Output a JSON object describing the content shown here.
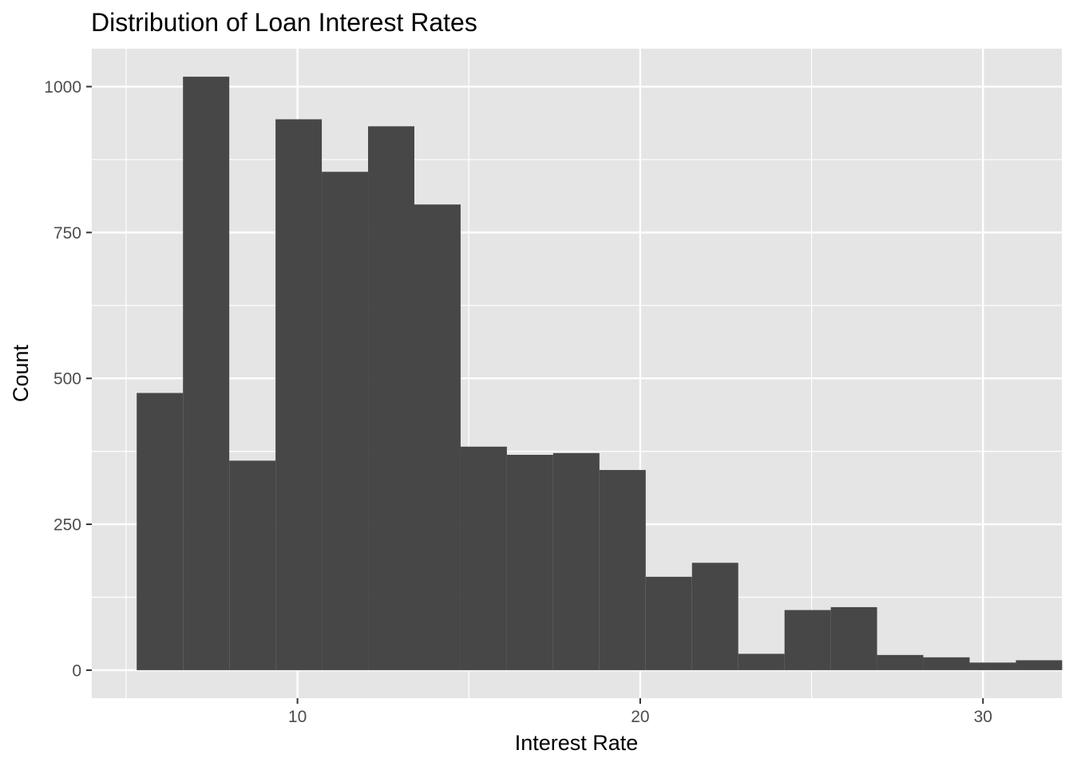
{
  "chart_data": {
    "type": "bar",
    "title": "Distribution of Loan Interest Rates",
    "xlabel": "Interest Rate",
    "ylabel": "Count",
    "xlim": [
      4.0,
      32.3
    ],
    "ylim": [
      -48,
      1065
    ],
    "x_ticks": [
      10,
      20,
      30
    ],
    "y_ticks": [
      0,
      250,
      500,
      750,
      1000
    ],
    "x_minor_ticks": [
      5,
      15,
      25
    ],
    "y_minor_ticks": [
      125,
      375,
      625,
      875
    ],
    "grid": true,
    "panel_background": "#e5e5e5",
    "grid_color": "#ffffff",
    "bar_color": "#474747",
    "bins": [
      {
        "x0": 5.31,
        "x1": 6.66,
        "count": 475
      },
      {
        "x0": 6.66,
        "x1": 8.01,
        "count": 1017
      },
      {
        "x0": 8.01,
        "x1": 9.36,
        "count": 359
      },
      {
        "x0": 9.36,
        "x1": 10.71,
        "count": 944
      },
      {
        "x0": 10.71,
        "x1": 12.06,
        "count": 854
      },
      {
        "x0": 12.06,
        "x1": 13.41,
        "count": 932
      },
      {
        "x0": 13.41,
        "x1": 14.76,
        "count": 798
      },
      {
        "x0": 14.76,
        "x1": 16.11,
        "count": 383
      },
      {
        "x0": 16.11,
        "x1": 17.46,
        "count": 369
      },
      {
        "x0": 17.46,
        "x1": 18.81,
        "count": 372
      },
      {
        "x0": 18.81,
        "x1": 20.16,
        "count": 343
      },
      {
        "x0": 20.16,
        "x1": 21.51,
        "count": 160
      },
      {
        "x0": 21.51,
        "x1": 22.86,
        "count": 184
      },
      {
        "x0": 22.86,
        "x1": 24.21,
        "count": 28
      },
      {
        "x0": 24.21,
        "x1": 25.56,
        "count": 103
      },
      {
        "x0": 25.56,
        "x1": 26.91,
        "count": 108
      },
      {
        "x0": 26.91,
        "x1": 28.26,
        "count": 26
      },
      {
        "x0": 28.26,
        "x1": 29.61,
        "count": 22
      },
      {
        "x0": 29.61,
        "x1": 30.96,
        "count": 13
      },
      {
        "x0": 30.96,
        "x1": 32.31,
        "count": 17
      }
    ]
  }
}
